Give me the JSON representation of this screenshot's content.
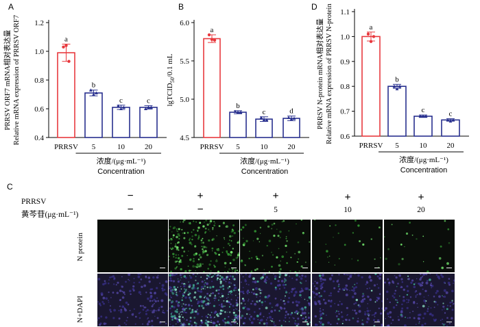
{
  "chart_data": [
    {
      "panel": "A",
      "type": "bar",
      "categories": [
        "PRRSV",
        "5",
        "10",
        "20"
      ],
      "values": [
        0.99,
        0.71,
        0.61,
        0.61
      ],
      "errors": [
        0.06,
        0.02,
        0.015,
        0.012
      ],
      "points": [
        [
          1.03,
          1.04,
          0.93
        ],
        [
          0.73,
          0.7,
          0.71
        ],
        [
          0.62,
          0.6,
          0.61
        ],
        [
          0.6,
          0.61,
          0.61
        ]
      ],
      "letters": [
        "a",
        "b",
        "c",
        "c"
      ],
      "colors": [
        "#e8383d",
        "#272f8e",
        "#272f8e",
        "#272f8e"
      ],
      "ylabel_cn": "PRRSV ORF7 mRNA相对表达量",
      "ylabel_en": "Relative mRNA expression of  PRRSV ORF7",
      "xlabel_cn": "浓度/(μg·mL⁻¹)",
      "xlabel_en": "Concentration",
      "ylim": [
        0.4,
        1.2
      ],
      "yticks": [
        "0.4",
        "0.6",
        "0.8",
        "1.0",
        "1.2"
      ],
      "ytick_values": [
        0.4,
        0.6,
        0.8,
        1.0,
        1.2
      ]
    },
    {
      "panel": "B",
      "type": "bar",
      "categories": [
        "PRRSV",
        "5",
        "10",
        "20"
      ],
      "values": [
        5.79,
        4.83,
        4.74,
        4.75
      ],
      "errors": [
        0.05,
        0.02,
        0.03,
        0.03
      ],
      "points": [
        [
          5.84,
          5.78,
          5.77
        ],
        [
          4.84,
          4.83,
          4.83
        ],
        [
          4.76,
          4.73,
          4.73
        ],
        [
          4.76,
          4.74,
          4.75
        ]
      ],
      "letters": [
        "a",
        "b",
        "c",
        "d"
      ],
      "colors": [
        "#e8383d",
        "#272f8e",
        "#272f8e",
        "#272f8e"
      ],
      "ylabel_main": "lgTCID",
      "ylabel_sub": "50",
      "ylabel_tail": "/0.1 mL",
      "xlabel_cn": "浓度/(μg·mL⁻¹)",
      "xlabel_en": "Concentration",
      "ylim": [
        4.5,
        6.0
      ],
      "yticks": [
        "4.5",
        "5.0",
        "5.5",
        "6.0"
      ],
      "ytick_values": [
        4.5,
        5.0,
        5.5,
        6.0
      ]
    },
    {
      "panel": "D",
      "type": "bar",
      "categories": [
        "PRRSV",
        "5",
        "10",
        "20"
      ],
      "values": [
        1.0,
        0.8,
        0.68,
        0.665
      ],
      "errors": [
        0.018,
        0.008,
        0.005,
        0.005
      ],
      "points": [
        [
          1.01,
          0.98,
          1.0
        ],
        [
          0.8,
          0.79,
          0.8
        ],
        [
          0.68,
          0.68,
          0.68
        ],
        [
          0.665,
          0.66,
          0.665
        ]
      ],
      "letters": [
        "a",
        "b",
        "c",
        "c"
      ],
      "colors": [
        "#e8383d",
        "#272f8e",
        "#272f8e",
        "#272f8e"
      ],
      "ylabel_cn": "PRRSV N-protein mRNA相对表达量",
      "ylabel_en": "Relative mRNA expression of  PRRSV N-protein",
      "xlabel_cn": "浓度/(μg·mL⁻¹)",
      "xlabel_en": "Concentration",
      "ylim": [
        0.6,
        1.1
      ],
      "yticks": [
        "0.6",
        "0.7",
        "0.8",
        "0.9",
        "1.0",
        "1.1"
      ],
      "ytick_values": [
        0.6,
        0.7,
        0.8,
        0.9,
        1.0,
        1.1
      ]
    }
  ],
  "panel_c": {
    "label": "C",
    "row_prrsv": "PRRSV",
    "row_drug": "黄芩苷(μg·mL⁻¹)",
    "prrsv_marks": [
      "−",
      "+",
      "+",
      "+",
      "+"
    ],
    "drug_marks": [
      "−",
      "−",
      "5",
      "10",
      "20"
    ],
    "row_names": [
      "N protein",
      "N+DAPI"
    ],
    "green_intensity": [
      0,
      1.0,
      0.35,
      0.12,
      0.1
    ]
  }
}
